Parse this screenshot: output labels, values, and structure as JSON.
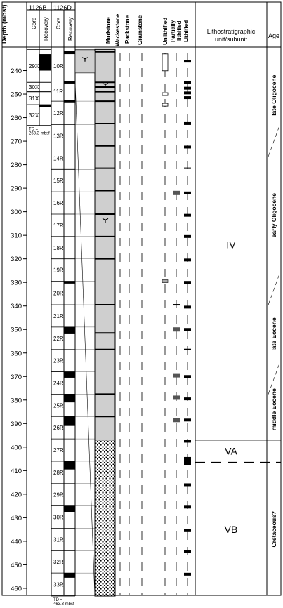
{
  "chart_data": {
    "type": "table",
    "depth_axis": {
      "label": "Depth (mbsf)",
      "min": 230,
      "max": 463,
      "ticks": [
        240,
        250,
        260,
        270,
        280,
        290,
        300,
        310,
        320,
        330,
        340,
        350,
        360,
        370,
        380,
        390,
        400,
        410,
        420,
        430,
        440,
        450,
        460
      ]
    },
    "holes": [
      {
        "name": "1126B",
        "cores": [
          {
            "label": "29X",
            "top": 231.0,
            "bottom": 245.0
          },
          {
            "label": "30X",
            "top": 245.0,
            "bottom": 249.0
          },
          {
            "label": "31X",
            "top": 249.0,
            "bottom": 254.5
          },
          {
            "label": "32X",
            "top": 254.5,
            "bottom": 263.3
          }
        ],
        "recovery_black": [
          [
            233.0,
            240.0
          ],
          [
            254.5,
            255.5
          ]
        ],
        "td": "TD =\n263.3 mbsf"
      },
      {
        "name": "1126D",
        "cores": [
          {
            "label": "10R",
            "top": 231.5,
            "bottom": 244.5
          },
          {
            "label": "11R",
            "top": 244.5,
            "bottom": 253.0
          },
          {
            "label": "12R",
            "top": 253.0,
            "bottom": 263.0
          },
          {
            "label": "13R",
            "top": 263.0,
            "bottom": 272.5
          },
          {
            "label": "14R",
            "top": 272.5,
            "bottom": 282.0
          },
          {
            "label": "15R",
            "top": 282.0,
            "bottom": 291.5
          },
          {
            "label": "16R",
            "top": 291.5,
            "bottom": 301.0
          },
          {
            "label": "17R",
            "top": 301.0,
            "bottom": 310.5
          },
          {
            "label": "18R",
            "top": 310.5,
            "bottom": 320.0
          },
          {
            "label": "19R",
            "top": 320.0,
            "bottom": 329.5
          },
          {
            "label": "20R",
            "top": 329.5,
            "bottom": 339.5
          },
          {
            "label": "21R",
            "top": 339.5,
            "bottom": 349.0
          },
          {
            "label": "22R",
            "top": 349.0,
            "bottom": 358.5
          },
          {
            "label": "23R",
            "top": 358.5,
            "bottom": 368.0
          },
          {
            "label": "24R",
            "top": 368.0,
            "bottom": 377.5
          },
          {
            "label": "25R",
            "top": 377.5,
            "bottom": 387.0
          },
          {
            "label": "26R",
            "top": 387.0,
            "bottom": 396.5
          },
          {
            "label": "27R",
            "top": 396.5,
            "bottom": 406.0
          },
          {
            "label": "28R",
            "top": 406.0,
            "bottom": 415.5
          },
          {
            "label": "29R",
            "top": 415.5,
            "bottom": 425.0
          },
          {
            "label": "30R",
            "top": 425.0,
            "bottom": 434.5
          },
          {
            "label": "31R",
            "top": 434.5,
            "bottom": 444.0
          },
          {
            "label": "32R",
            "top": 444.0,
            "bottom": 453.5
          },
          {
            "label": "33R",
            "top": 453.5,
            "bottom": 463.3
          }
        ],
        "recovery_black": [
          [
            231.5,
            233.0
          ],
          [
            244.5,
            245.5
          ],
          [
            252.5,
            253.5
          ],
          [
            329.5,
            330.5
          ],
          [
            349.0,
            352.0
          ],
          [
            368.0,
            370.5
          ],
          [
            377.5,
            381.0
          ],
          [
            387.0,
            391.0
          ],
          [
            406.0,
            409.5
          ],
          [
            425.0,
            427.5
          ],
          [
            453.5,
            455.5
          ]
        ],
        "td": "TD =\n463.3 mbsf"
      }
    ],
    "lithology_columns": [
      "Mudstone",
      "Wackestone",
      "Packstone",
      "Grainstone"
    ],
    "lithology": [
      {
        "type": "mudstone",
        "top": 231.0,
        "bottom": 397.0
      },
      {
        "type": "mudstone_patterned",
        "top": 397.0,
        "bottom": 463.3
      }
    ],
    "mudstone_bed_lines": [
      232.0,
      245.0,
      247.0,
      249.0,
      253.0,
      262.5,
      272.0,
      281.5,
      291.0,
      301.0,
      310.5,
      320.0,
      339.5,
      351.5,
      358.5,
      377.5,
      387.0
    ],
    "fossil_marks": [
      {
        "col": "1126D",
        "depth": 235.0
      },
      {
        "col": "litho",
        "depth": 246.0
      },
      {
        "col": "litho",
        "depth": 303.5
      }
    ],
    "lithification_columns": [
      "Unlithified",
      "Partially lithified",
      "Lithified"
    ],
    "lithification_marks": [
      {
        "col": 0,
        "depth": 236.5,
        "style": "open_tall"
      },
      {
        "col": 0,
        "depth": 250.0,
        "style": "open"
      },
      {
        "col": 0,
        "depth": 254.5,
        "style": "open"
      },
      {
        "col": 0,
        "depth": 329.5,
        "style": "grey"
      },
      {
        "col": 1,
        "depth": 292.0,
        "style": "dark"
      },
      {
        "col": 1,
        "depth": 339.5,
        "style": "line"
      },
      {
        "col": 1,
        "depth": 350.0,
        "style": "dark"
      },
      {
        "col": 1,
        "depth": 369.5,
        "style": "dark"
      },
      {
        "col": 1,
        "depth": 379.0,
        "style": "dark"
      },
      {
        "col": 1,
        "depth": 388.5,
        "style": "dark"
      },
      {
        "col": 2,
        "depth": 236.0,
        "style": "black"
      },
      {
        "col": 2,
        "depth": 245.0,
        "style": "black"
      },
      {
        "col": 2,
        "depth": 247.5,
        "style": "black"
      },
      {
        "col": 2,
        "depth": 249.5,
        "style": "black"
      },
      {
        "col": 2,
        "depth": 251.5,
        "style": "black"
      },
      {
        "col": 2,
        "depth": 262.5,
        "style": "black"
      },
      {
        "col": 2,
        "depth": 272.5,
        "style": "black"
      },
      {
        "col": 2,
        "depth": 281.5,
        "style": "line"
      },
      {
        "col": 2,
        "depth": 292.0,
        "style": "black"
      },
      {
        "col": 2,
        "depth": 301.5,
        "style": "black"
      },
      {
        "col": 2,
        "depth": 310.5,
        "style": "black"
      },
      {
        "col": 2,
        "depth": 320.5,
        "style": "black"
      },
      {
        "col": 2,
        "depth": 330.0,
        "style": "black"
      },
      {
        "col": 2,
        "depth": 340.5,
        "style": "black"
      },
      {
        "col": 2,
        "depth": 350.0,
        "style": "black"
      },
      {
        "col": 2,
        "depth": 358.5,
        "style": "line"
      },
      {
        "col": 2,
        "depth": 370.0,
        "style": "black"
      },
      {
        "col": 2,
        "depth": 379.5,
        "style": "black"
      },
      {
        "col": 2,
        "depth": 388.5,
        "style": "black"
      },
      {
        "col": 2,
        "depth": 397.5,
        "style": "black"
      },
      {
        "col": 2,
        "depth": 406.0,
        "style": "black_big"
      },
      {
        "col": 2,
        "depth": 416.0,
        "style": "black"
      },
      {
        "col": 2,
        "depth": 425.5,
        "style": "black"
      },
      {
        "col": 2,
        "depth": 435.5,
        "style": "black"
      },
      {
        "col": 2,
        "depth": 444.5,
        "style": "black"
      },
      {
        "col": 2,
        "depth": 454.0,
        "style": "black"
      }
    ],
    "units": [
      {
        "label": "IV",
        "top": 231.0,
        "bottom": 397.0
      },
      {
        "label": "VA",
        "top": 397.0,
        "bottom": 406.5
      },
      {
        "label": "VB",
        "top": 406.5,
        "bottom": 463.3
      }
    ],
    "ages": [
      {
        "label": "late Oligocene",
        "top": 231.0,
        "bottom": 270.0
      },
      {
        "label": "early Oligocene",
        "top": 270.0,
        "bottom": 333.0
      },
      {
        "label": "late Eocene",
        "top": 333.0,
        "bottom": 371.0
      },
      {
        "label": "middle Eocene",
        "top": 371.0,
        "bottom": 397.0
      },
      {
        "label": "Cretaceous?",
        "top": 406.5,
        "bottom": 463.3
      }
    ]
  },
  "headers": {
    "depth": "Depth (mbsf)",
    "hole_b": "1126B",
    "hole_d": "1126D",
    "core": "Core",
    "recovery": "Recovery",
    "mudstone": "Mudstone",
    "wackestone": "Wackestone",
    "packstone": "Packstone",
    "grainstone": "Grainstone",
    "unlithified": "Unlithified",
    "partially": "Partially",
    "lithified_p": "lithified",
    "lithified": "Lithified",
    "litho_unit": "Lithostratigraphic\nunit/subunit",
    "age": "Age"
  },
  "colors": {
    "grey_fill": "#cfcfcf",
    "mark_dark": "#555555",
    "mark_grey": "#aaaaaa"
  }
}
